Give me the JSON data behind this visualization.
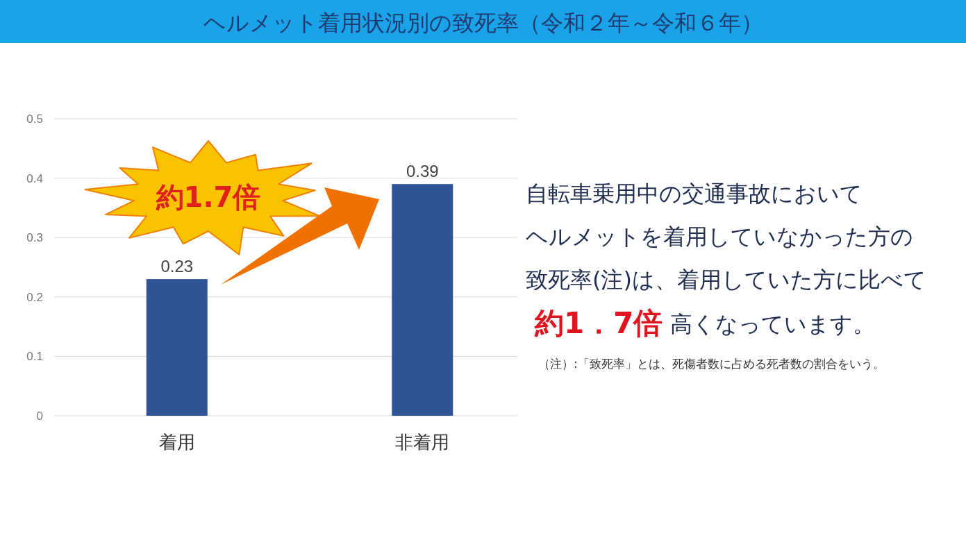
{
  "chart_data": {
    "type": "bar",
    "title": "ヘルメット着用状況別の致死率（令和２年～令和６年）",
    "categories": [
      "着用",
      "非着用"
    ],
    "values": [
      0.23,
      0.39
    ],
    "color": "#2f5597",
    "ylim": [
      0,
      0.5
    ],
    "yticks": [
      0,
      0.1,
      0.2,
      0.3,
      0.4,
      0.5
    ],
    "grid": "y",
    "data_labels": true,
    "annotations": [
      "約1.7倍",
      "自転車乗用中の交通事故において",
      "ヘルメットを着用していなかった方の",
      "致死率(注)は、着用していた方に比べて",
      "約1．7倍",
      "高くなっています。",
      "（注）:「致死率」とは、死傷者数に占める死者数の割合をいう。"
    ]
  }
}
